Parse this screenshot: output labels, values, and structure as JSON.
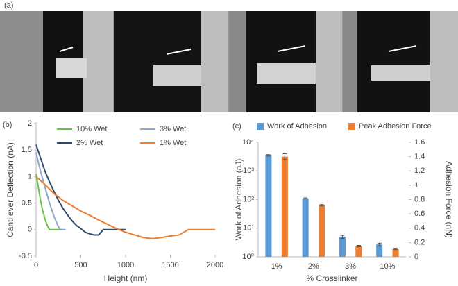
{
  "panel_labels": [
    "(a)",
    "(b)",
    "(c)"
  ],
  "chart_data": [
    {
      "type": "line",
      "xlabel": "Height (nm)",
      "ylabel": "Cantilever Deflection (nA)",
      "xlim": [
        0,
        2000
      ],
      "xticks": [
        0,
        500,
        1000,
        1500,
        2000
      ],
      "ylim": [
        -0.5,
        2
      ],
      "yticks": [
        -0.5,
        0,
        0.5,
        1,
        1.5,
        2
      ],
      "series": [
        {
          "name": "10% Wet",
          "color": "#66c24a",
          "x": [
            0,
            25,
            50,
            75,
            100,
            125,
            150,
            200,
            250,
            300
          ],
          "values": [
            1.05,
            0.8,
            0.55,
            0.35,
            0.2,
            0.08,
            0,
            0,
            0,
            0
          ]
        },
        {
          "name": "3% Wet",
          "color": "#8ea9c8",
          "x": [
            0,
            50,
            100,
            150,
            200,
            250,
            275,
            300,
            330
          ],
          "values": [
            1.45,
            1.1,
            0.8,
            0.5,
            0.25,
            0.05,
            0,
            0,
            0
          ]
        },
        {
          "name": "2% Wet",
          "color": "#2f4a6b",
          "x": [
            0,
            50,
            100,
            150,
            200,
            250,
            300,
            350,
            400,
            450,
            500,
            550,
            600,
            650,
            700,
            750,
            800,
            850,
            900,
            950,
            1000
          ],
          "values": [
            1.6,
            1.35,
            1.1,
            0.9,
            0.72,
            0.55,
            0.4,
            0.28,
            0.17,
            0.08,
            0.02,
            -0.05,
            -0.08,
            -0.1,
            -0.1,
            0,
            0,
            0,
            0,
            0,
            0
          ]
        },
        {
          "name": "1% Wet",
          "color": "#ed7d31",
          "x": [
            0,
            100,
            200,
            300,
            400,
            500,
            600,
            700,
            800,
            900,
            1000,
            1100,
            1200,
            1300,
            1400,
            1500,
            1600,
            1700,
            1800,
            1900,
            2000
          ],
          "values": [
            1.0,
            0.85,
            0.68,
            0.55,
            0.45,
            0.35,
            0.27,
            0.18,
            0.1,
            0.02,
            -0.05,
            -0.1,
            -0.15,
            -0.17,
            -0.15,
            -0.12,
            -0.1,
            0,
            0,
            0,
            0
          ]
        }
      ]
    },
    {
      "type": "bar",
      "xlabel": "% Crosslinker",
      "ylabel": "Work of Adhesion (aJ)",
      "y2label": "Adhesion Force (nN)",
      "categories": [
        "1%",
        "2%",
        "3%",
        "10%"
      ],
      "log_y": true,
      "ylim": [
        1,
        10000
      ],
      "yticks": [
        {
          "value": 1,
          "label": "10⁰"
        },
        {
          "value": 10,
          "label": "10¹"
        },
        {
          "value": 100,
          "label": "10²"
        },
        {
          "value": 1000,
          "label": "10³"
        },
        {
          "value": 10000,
          "label": "10⁴"
        }
      ],
      "y2lim": [
        0,
        1.6
      ],
      "y2ticks": [
        0,
        0.2,
        0.4,
        0.6,
        0.8,
        1,
        1.2,
        1.4,
        1.6
      ],
      "series": [
        {
          "name": "Work of Adhesion",
          "color": "#5b9bd5",
          "values": [
            3500,
            110,
            5,
            2.7
          ],
          "errors": [
            200,
            5,
            0.6,
            0.3
          ]
        },
        {
          "name": "Peak Adhesion Force",
          "color": "#ed7d31",
          "axis": "y2",
          "values": [
            1.4,
            0.72,
            0.15,
            0.11
          ],
          "errors": [
            0.04,
            0.01,
            0.01,
            0.01
          ]
        }
      ]
    }
  ]
}
